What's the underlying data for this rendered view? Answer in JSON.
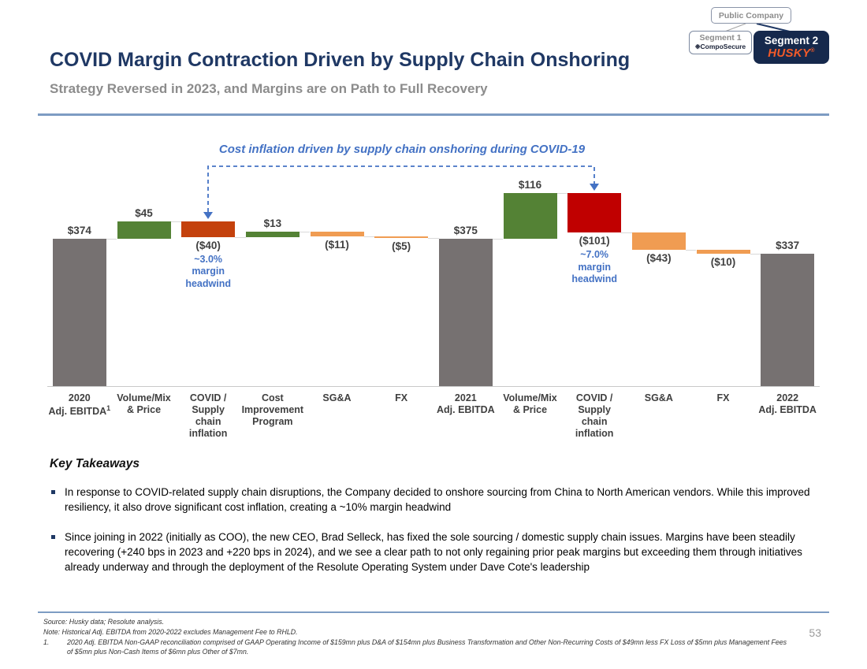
{
  "org_chart": {
    "public_company": "Public Company",
    "segment1": {
      "label": "Segment 1",
      "company": "CompoSecure"
    },
    "segment2": {
      "label": "Segment 2",
      "company": "HUSKY",
      "registered": "®"
    }
  },
  "header": {
    "title": "COVID Margin Contraction Driven by Supply Chain Onshoring",
    "subtitle": "Strategy Reversed in 2023, and Margins are on Path to Full Recovery"
  },
  "chart_data": {
    "type": "waterfall",
    "annotation": "Cost inflation driven by supply chain onshoring during COVID-19",
    "unit": "$mn",
    "ylim": [
      0,
      500
    ],
    "colors": {
      "total": "#767171",
      "increase": "#548235",
      "decrease": "#F09C52",
      "covid_2021": "#C4410C",
      "covid_2022": "#C00000"
    },
    "steps": [
      {
        "category": "2020\nAdj. EBITDA",
        "sup": "1",
        "value": 374,
        "label": "$374",
        "kind": "total"
      },
      {
        "category": "Volume/Mix\n& Price",
        "value": 45,
        "label": "$45",
        "kind": "increase"
      },
      {
        "category": "COVID /\nSupply\nchain\ninflation",
        "value": -40,
        "label": "($40)",
        "kind": "covid_2021",
        "annotation": "~3.0%\nmargin\nheadwind"
      },
      {
        "category": "Cost\nImprovement\nProgram",
        "value": 13,
        "label": "$13",
        "kind": "increase"
      },
      {
        "category": "SG&A",
        "value": -11,
        "label": "($11)",
        "kind": "decrease"
      },
      {
        "category": "FX",
        "value": -5,
        "label": "($5)",
        "kind": "decrease"
      },
      {
        "category": "2021\nAdj. EBITDA",
        "value": 375,
        "label": "$375",
        "kind": "total"
      },
      {
        "category": "Volume/Mix\n& Price",
        "value": 116,
        "label": "$116",
        "kind": "increase"
      },
      {
        "category": "COVID /\nSupply\nchain\ninflation",
        "value": -101,
        "label": "($101)",
        "kind": "covid_2022",
        "annotation": "~7.0%\nmargin\nheadwind"
      },
      {
        "category": "SG&A",
        "value": -43,
        "label": "($43)",
        "kind": "decrease"
      },
      {
        "category": "FX",
        "value": -10,
        "label": "($10)",
        "kind": "decrease"
      },
      {
        "category": "2022\nAdj. EBITDA",
        "value": 337,
        "label": "$337",
        "kind": "total"
      }
    ]
  },
  "takeaways": {
    "heading": "Key Takeaways",
    "bullets": [
      "In response to COVID-related supply chain disruptions, the Company decided to onshore sourcing from China to North American vendors. While this improved resiliency, it also drove significant cost inflation, creating a ~10% margin headwind",
      "Since joining in 2022 (initially as COO), the new CEO, Brad Selleck, has fixed the sole sourcing / domestic supply chain issues. Margins have been steadily recovering (+240 bps in 2023 and +220 bps in 2024), and we see a clear path to not only regaining prior peak margins but exceeding them through initiatives already underway and through the deployment of the Resolute Operating System under Dave Cote's leadership"
    ]
  },
  "footer": {
    "source": "Source: Husky data; Resolute analysis.",
    "note": "Note: Historical Adj. EBITDA from 2020-2022 excludes Management Fee to RHLD.",
    "footnotes": [
      {
        "num": "1.",
        "text": "2020 Adj. EBITDA Non-GAAP reconciliation comprised of GAAP Operating Income of $159mn plus D&A of $154mn plus Business Transformation and Other Non-Recurring Costs of $49mn less FX Loss of $5mn plus Management Fees of $5mn plus Non-Cash Items of $6mn plus Other of $7mn."
      }
    ],
    "page_number": "53"
  }
}
